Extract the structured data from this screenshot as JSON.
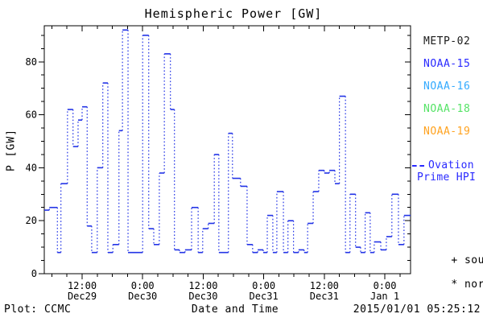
{
  "title": "Hemispheric Power [GW]",
  "axes": {
    "ylabel": "P [GW]",
    "xlabel": "Date and Time",
    "yticks": [
      0,
      20,
      40,
      60,
      80
    ],
    "ytick_minor_step": 5,
    "ymax": 93.6,
    "xspan_hours": 72.6,
    "xticks": [
      {
        "t": 7.5,
        "time": "12:00",
        "date": "Dec29"
      },
      {
        "t": 19.5,
        "time": "0:00",
        "date": "Dec30"
      },
      {
        "t": 31.5,
        "time": "12:00",
        "date": "Dec30"
      },
      {
        "t": 43.5,
        "time": "0:00",
        "date": "Dec31"
      },
      {
        "t": 55.5,
        "time": "12:00",
        "date": "Dec31"
      },
      {
        "t": 67.5,
        "time": "0:00",
        "date": "Jan 1"
      }
    ],
    "xtick_minor_step": 3,
    "xtick_minor_offset": 1.5
  },
  "legend": {
    "satellites": [
      {
        "label": "METP-02",
        "color": "#1a1a1a"
      },
      {
        "label": "NOAA-15",
        "color": "#2929ff"
      },
      {
        "label": "NOAA-16",
        "color": "#33aaff"
      },
      {
        "label": "NOAA-18",
        "color": "#55e366"
      },
      {
        "label": "NOAA-19",
        "color": "#ffa21f"
      }
    ],
    "model": {
      "line1": "Ovation",
      "line2": "Prime HPI",
      "color": "#2929ff"
    },
    "markers": [
      {
        "marker": "+",
        "label": "south"
      },
      {
        "marker": "*",
        "label": "north"
      }
    ]
  },
  "footer": {
    "left": "Plot: CCMC",
    "center": "Date and Time",
    "right": "2015/01/01 05:25:12"
  },
  "chart_data": {
    "type": "line",
    "title": "Hemispheric Power [GW]",
    "xlabel": "Date and Time",
    "ylabel": "P [GW]",
    "ylim": [
      0,
      93.6
    ],
    "x_major_tick_every_hours": 12,
    "x_minor_tick_every_hours": 3,
    "grid": false,
    "legend_position": "right-outside",
    "line_color": "#2233e6",
    "style": "step plot: horizontal segments solid, vertical connectors dotted",
    "series": [
      {
        "name": "Ovation Prime HPI",
        "units": "GW",
        "steps_t_hours_value_gw": [
          [
            0.0,
            24
          ],
          [
            1.0,
            25
          ],
          [
            2.6,
            8
          ],
          [
            3.3,
            34
          ],
          [
            4.6,
            62
          ],
          [
            5.7,
            48
          ],
          [
            6.7,
            58
          ],
          [
            7.5,
            63
          ],
          [
            8.5,
            18
          ],
          [
            9.4,
            8
          ],
          [
            10.5,
            40
          ],
          [
            11.6,
            72
          ],
          [
            12.6,
            8
          ],
          [
            13.6,
            11
          ],
          [
            14.8,
            54
          ],
          [
            15.5,
            92
          ],
          [
            16.6,
            8
          ],
          [
            19.5,
            90
          ],
          [
            20.7,
            17
          ],
          [
            21.7,
            11
          ],
          [
            22.8,
            38
          ],
          [
            23.8,
            83
          ],
          [
            25.0,
            62
          ],
          [
            25.8,
            9
          ],
          [
            26.8,
            8
          ],
          [
            27.9,
            9
          ],
          [
            29.2,
            25
          ],
          [
            30.5,
            8
          ],
          [
            31.4,
            17
          ],
          [
            32.5,
            19
          ],
          [
            33.7,
            45
          ],
          [
            34.6,
            8
          ],
          [
            36.5,
            53
          ],
          [
            37.3,
            36
          ],
          [
            38.9,
            33
          ],
          [
            40.2,
            11
          ],
          [
            41.3,
            8
          ],
          [
            42.3,
            9
          ],
          [
            43.4,
            8
          ],
          [
            44.2,
            22
          ],
          [
            45.3,
            8
          ],
          [
            46.1,
            31
          ],
          [
            47.4,
            8
          ],
          [
            48.3,
            20
          ],
          [
            49.4,
            8
          ],
          [
            50.4,
            9
          ],
          [
            51.5,
            8
          ],
          [
            52.2,
            19
          ],
          [
            53.3,
            31
          ],
          [
            54.4,
            39
          ],
          [
            55.5,
            38
          ],
          [
            56.5,
            39
          ],
          [
            57.6,
            34
          ],
          [
            58.5,
            67
          ],
          [
            59.7,
            8
          ],
          [
            60.6,
            30
          ],
          [
            61.7,
            10
          ],
          [
            62.7,
            8
          ],
          [
            63.6,
            23
          ],
          [
            64.6,
            8
          ],
          [
            65.4,
            12
          ],
          [
            66.7,
            9
          ],
          [
            67.8,
            14
          ],
          [
            68.9,
            30
          ],
          [
            70.2,
            11
          ],
          [
            71.3,
            22
          ],
          [
            72.6,
            22
          ]
        ]
      }
    ]
  }
}
